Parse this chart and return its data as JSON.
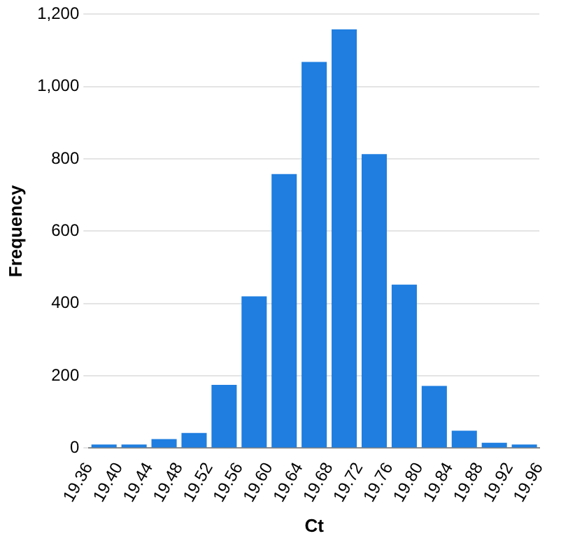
{
  "chart_data": {
    "type": "histogram",
    "xlabel": "Ct",
    "ylabel": "Frequency",
    "bins": [
      19.36,
      19.4,
      19.44,
      19.48,
      19.52,
      19.56,
      19.6,
      19.64,
      19.68,
      19.72,
      19.76,
      19.8,
      19.84,
      19.88,
      19.92,
      19.96
    ],
    "values": [
      10,
      10,
      25,
      42,
      175,
      420,
      758,
      1068,
      1158,
      813,
      452,
      172,
      48,
      15,
      10
    ],
    "color": "#1f7ee0",
    "xlim": [
      19.36,
      19.96
    ],
    "xticks": [
      {
        "value": 19.36,
        "label": "19.36"
      },
      {
        "value": 19.4,
        "label": "19.40"
      },
      {
        "value": 19.44,
        "label": "19.44"
      },
      {
        "value": 19.48,
        "label": "19.48"
      },
      {
        "value": 19.52,
        "label": "19.52"
      },
      {
        "value": 19.56,
        "label": "19.56"
      },
      {
        "value": 19.6,
        "label": "19.60"
      },
      {
        "value": 19.64,
        "label": "19.64"
      },
      {
        "value": 19.68,
        "label": "19.68"
      },
      {
        "value": 19.72,
        "label": "19.72"
      },
      {
        "value": 19.76,
        "label": "19.76"
      },
      {
        "value": 19.8,
        "label": "19.80"
      },
      {
        "value": 19.84,
        "label": "19.84"
      },
      {
        "value": 19.88,
        "label": "19.88"
      },
      {
        "value": 19.92,
        "label": "19.92"
      },
      {
        "value": 19.96,
        "label": "19.96"
      }
    ],
    "ylim": [
      0,
      1200
    ],
    "yticks": [
      {
        "value": 0,
        "label": "0"
      },
      {
        "value": 200,
        "label": "200"
      },
      {
        "value": 400,
        "label": "400"
      },
      {
        "value": 600,
        "label": "600"
      },
      {
        "value": 800,
        "label": "800"
      },
      {
        "value": 1000,
        "label": "1,000"
      },
      {
        "value": 1200,
        "label": "1,200"
      }
    ],
    "grid": "y",
    "legend": false
  }
}
